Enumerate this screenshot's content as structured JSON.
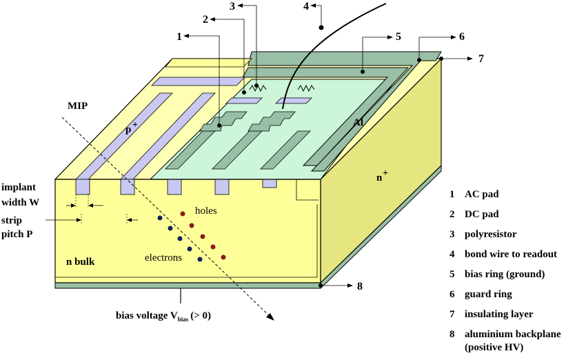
{
  "labels": {
    "mip": "MIP",
    "p_plus": "p",
    "p_plus_sup": "+",
    "n_plus": "n",
    "n_plus_sup": "+",
    "al": "Al",
    "holes": "holes",
    "electrons": "electrons",
    "n_bulk": "n bulk",
    "implant_line1": "implant",
    "implant_line2": "width W",
    "strip_line1": "strip",
    "strip_line2": "pitch P",
    "bias_voltage": "bias voltage V",
    "bias_sub": "bias",
    "bias_suffix": "(> 0)"
  },
  "callouts": [
    "1",
    "2",
    "3",
    "4",
    "5",
    "6",
    "7",
    "8"
  ],
  "legend": [
    {
      "num": "1",
      "text": "AC pad"
    },
    {
      "num": "2",
      "text": "DC pad"
    },
    {
      "num": "3",
      "text": "polyresistor"
    },
    {
      "num": "4",
      "text": "bond wire to readout"
    },
    {
      "num": "5",
      "text": "bias ring (ground)"
    },
    {
      "num": "6",
      "text": "guard ring"
    },
    {
      "num": "7",
      "text": "insulating layer"
    },
    {
      "num": "8",
      "text": "aluminium backplane"
    }
  ],
  "legend_extra": "(positive HV)",
  "colors": {
    "bulk": "#ffff99",
    "side": "#e6e680",
    "top": "#ffffb3",
    "oxide": "#ccf5d9",
    "aluminium": "#99bfa6",
    "implant": "#c8c8f0",
    "backplane": "#99bfa6",
    "hole": "#8b1a1a",
    "electron": "#10205a"
  }
}
